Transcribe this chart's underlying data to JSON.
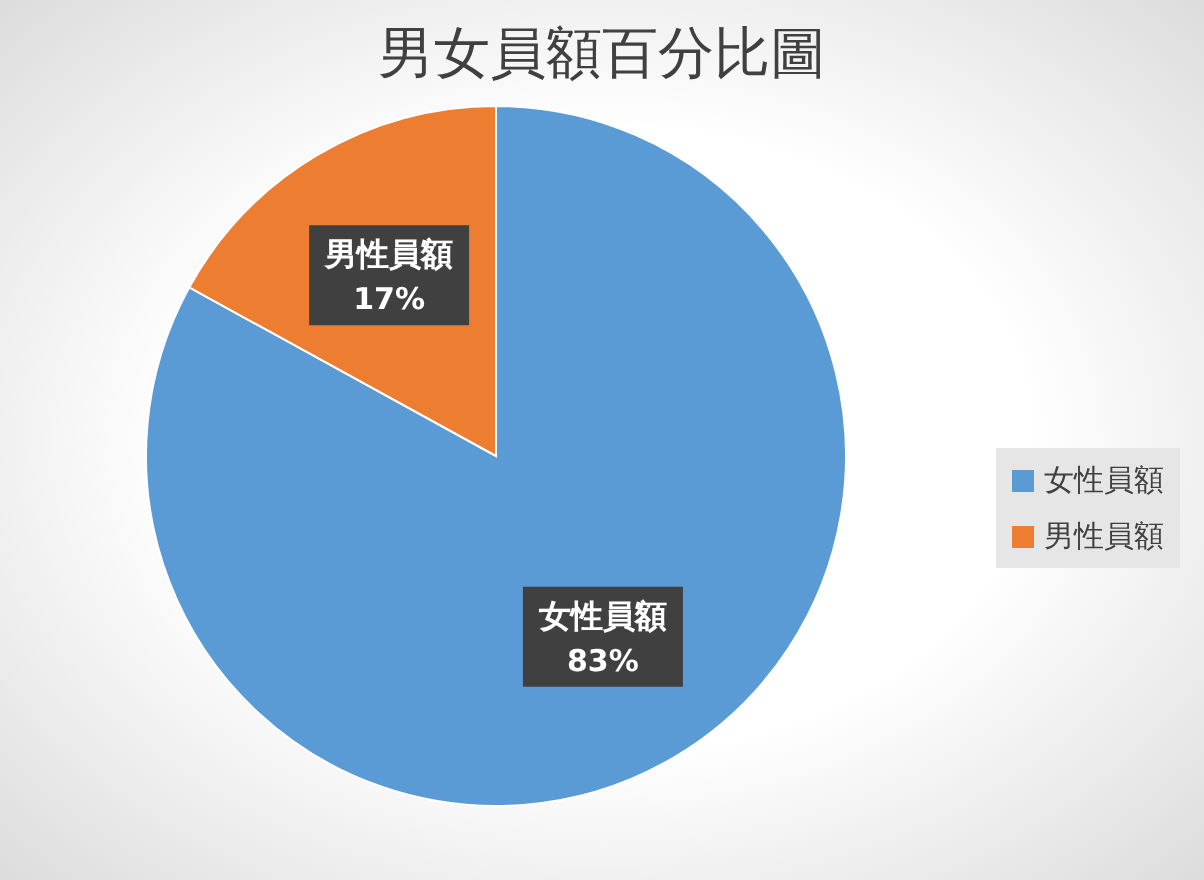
{
  "chart_data": {
    "type": "pie",
    "title": "男女員額百分比圖",
    "categories": [
      "女性員額",
      "男性員額"
    ],
    "values": [
      83,
      17
    ],
    "colors": [
      "#5b9bd5",
      "#ed7d31"
    ],
    "value_labels": [
      "83%",
      "17%"
    ],
    "legend": "right"
  }
}
